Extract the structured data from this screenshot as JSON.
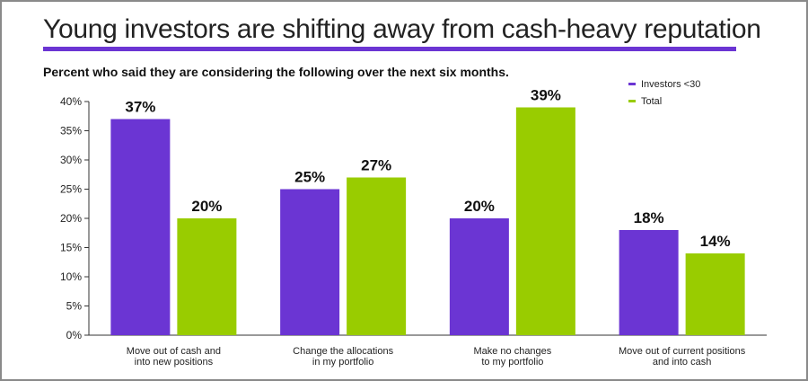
{
  "title": "Young investors are shifting away from cash-heavy reputation",
  "subtitle": "Percent who said they are considering the following over the next six months.",
  "colors": {
    "accent_rule": "#6b35d3",
    "investors_under_30": "#6b35d3",
    "total": "#99cc00",
    "axis": "#333333",
    "frame": "#8a8a8a"
  },
  "legend": [
    {
      "label": "Investors <30",
      "color": "#6b35d3"
    },
    {
      "label": "Total",
      "color": "#99cc00"
    }
  ],
  "chart_data": {
    "type": "bar",
    "title": "Young investors are shifting away from cash-heavy reputation",
    "subtitle": "Percent who said they are considering the following over the next six months.",
    "categories": [
      [
        "Move out of cash and",
        "into new positions"
      ],
      [
        "Change the allocations",
        "in my portfolio"
      ],
      [
        "Make no changes",
        "to my portfolio"
      ],
      [
        "Move out of current positions",
        "and into cash"
      ]
    ],
    "series": [
      {
        "name": "Investors <30",
        "values": [
          37,
          25,
          20,
          18
        ],
        "labels": [
          "37%",
          "25%",
          "20%",
          "18%"
        ],
        "color": "#6b35d3"
      },
      {
        "name": "Total",
        "values": [
          20,
          27,
          39,
          14
        ],
        "labels": [
          "20%",
          "27%",
          "39%",
          "14%"
        ],
        "color": "#99cc00"
      }
    ],
    "ylim": [
      0,
      40
    ],
    "yticks": [
      0,
      5,
      10,
      15,
      20,
      25,
      30,
      35,
      40
    ],
    "ytick_labels": [
      "0%",
      "5%",
      "10%",
      "15%",
      "20%",
      "25%",
      "30%",
      "35%",
      "40%"
    ],
    "grid": false,
    "legend_position": "top-right"
  }
}
